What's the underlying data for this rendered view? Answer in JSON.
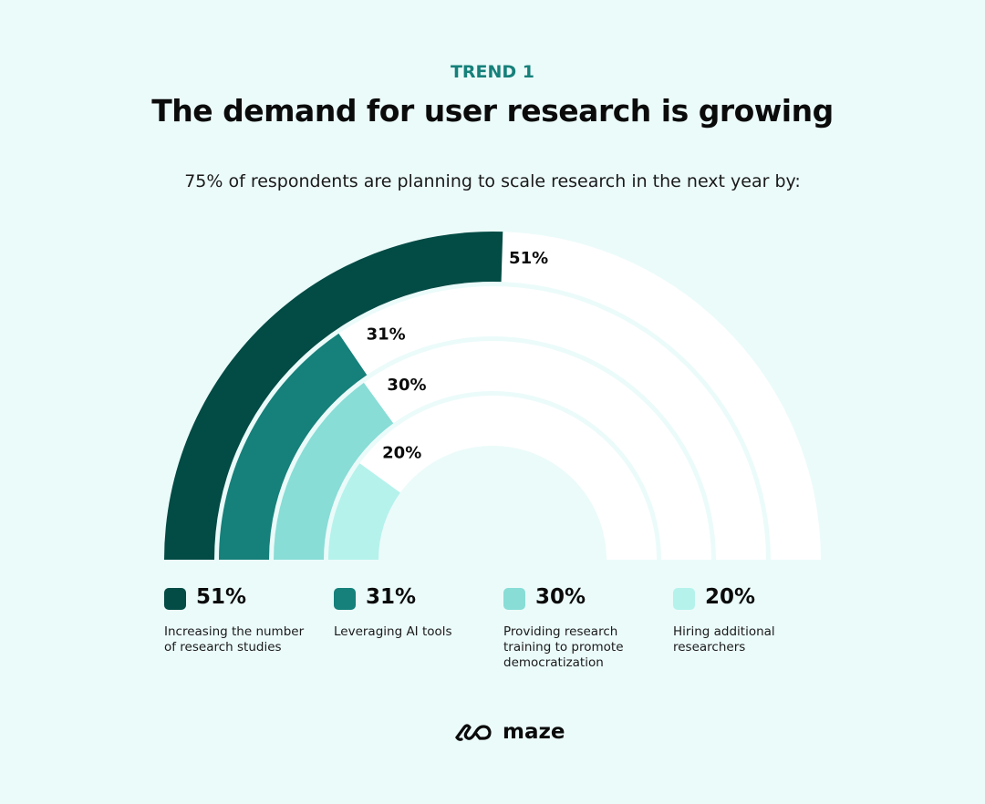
{
  "header": {
    "eyebrow": "TREND 1",
    "title": "The demand for user research is growing",
    "subtitle": "75% of respondents are planning to scale research in the next year by:"
  },
  "chart_data": {
    "type": "radial-bar",
    "range": [
      0,
      100
    ],
    "series": [
      {
        "label": "51%",
        "value": 51,
        "description": "Increasing the number of research studies",
        "color": "#034b45"
      },
      {
        "label": "31%",
        "value": 31,
        "description": "Leveraging AI tools",
        "color": "#16807a"
      },
      {
        "label": "30%",
        "value": 30,
        "description": "Providing research training to promote democratization",
        "color": "#88ddd6"
      },
      {
        "label": "20%",
        "value": 20,
        "description": "Hiring additional researchers",
        "color": "#b5f2ec"
      }
    ],
    "track_color": "#ffffff",
    "legend_placement": "bottom"
  },
  "brand": {
    "name": "maze"
  }
}
